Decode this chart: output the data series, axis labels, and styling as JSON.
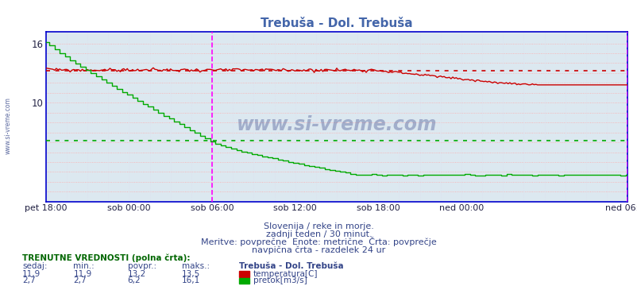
{
  "title": "Trebuša - Dol. Trebuša",
  "title_color": "#4466aa",
  "bg_color": "#ffffff",
  "plot_bg_color": "#dce8f0",
  "grid_color_h": "#ffaaaa",
  "grid_color_v": "#ddddee",
  "ylim": [
    0,
    17.2
  ],
  "n_points": 337,
  "temp_color": "#cc0000",
  "flow_color": "#00aa00",
  "temp_avg": 13.2,
  "flow_avg": 6.2,
  "vline_color": "#ff00ff",
  "vline_positions": [
    96,
    336
  ],
  "tick_positions": [
    0,
    48,
    96,
    144,
    192,
    240,
    288,
    336
  ],
  "tick_labels": [
    "pet 18:00",
    "sob 00:00",
    "sob 06:00",
    "sob 12:00",
    "sob 18:00",
    "ned 00:00",
    "",
    "ned 06:00"
  ],
  "ytick_positions": [
    10,
    16
  ],
  "ytick_labels": [
    "10",
    "16"
  ],
  "watermark": "www.si-vreme.com",
  "watermark_color": "#334488",
  "sub_text1": "Slovenija / reke in morje.",
  "sub_text2": "zadnji teden / 30 minut.",
  "sub_text3": "Meritve: povprečne  Enote: metrične  Črta: povprečje",
  "sub_text4": "navpična črta - razdelek 24 ur",
  "legend_title": "Trebuša - Dol. Trebuša",
  "label_temp": "temperatura[C]",
  "label_flow": "pretok[m3/s]",
  "table_label_color": "#006600",
  "sedaj_temp": "11,9",
  "min_temp": "11,9",
  "povpr_temp": "13,2",
  "maks_temp": "13,5",
  "sedaj_flow": "2,7",
  "min_flow": "2,7",
  "povpr_flow": "6,2",
  "maks_flow": "16,1",
  "text_color": "#334488",
  "left_label": "www.si-vreme.com",
  "left_label_color": "#334488",
  "spine_color": "#0000cc",
  "trenutne_color": "#006600"
}
